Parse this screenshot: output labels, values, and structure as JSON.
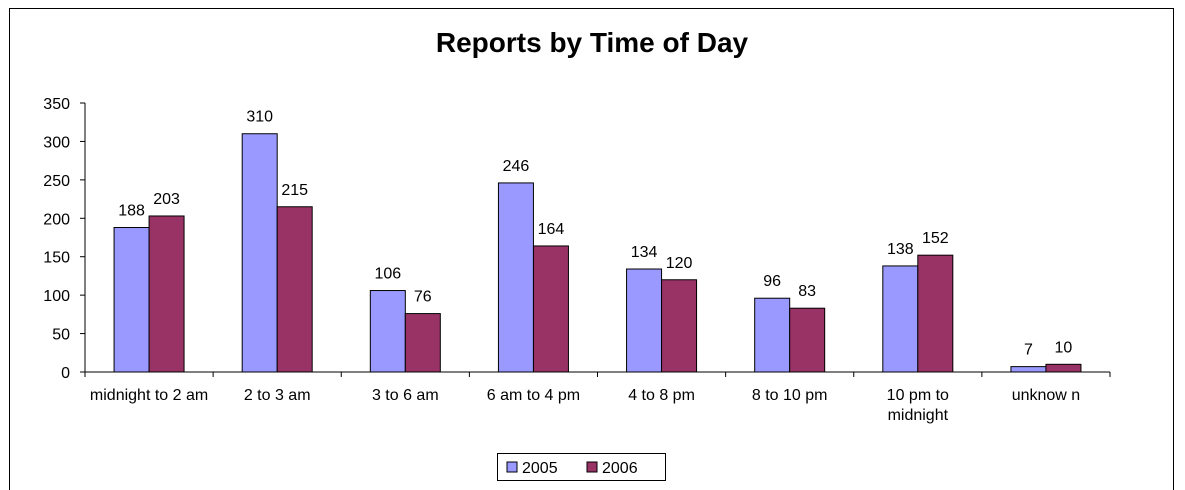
{
  "chart_data": {
    "type": "bar",
    "title": "Reports by Time of Day",
    "categories": [
      "midnight to 2 am",
      "2 to 3 am",
      "3 to 6 am",
      "6 am to 4 pm",
      "4 to 8 pm",
      "8 to 10 pm",
      "10 pm to midnight",
      "unknow n"
    ],
    "series": [
      {
        "name": "2005",
        "color": "#9999ff",
        "values": [
          188,
          310,
          106,
          246,
          134,
          96,
          138,
          7
        ]
      },
      {
        "name": "2006",
        "color": "#993366",
        "values": [
          203,
          215,
          76,
          164,
          120,
          83,
          152,
          10
        ]
      }
    ],
    "ylim": [
      0,
      350
    ],
    "yticks": [
      0,
      50,
      100,
      150,
      200,
      250,
      300,
      350
    ],
    "legend": "bottom"
  }
}
